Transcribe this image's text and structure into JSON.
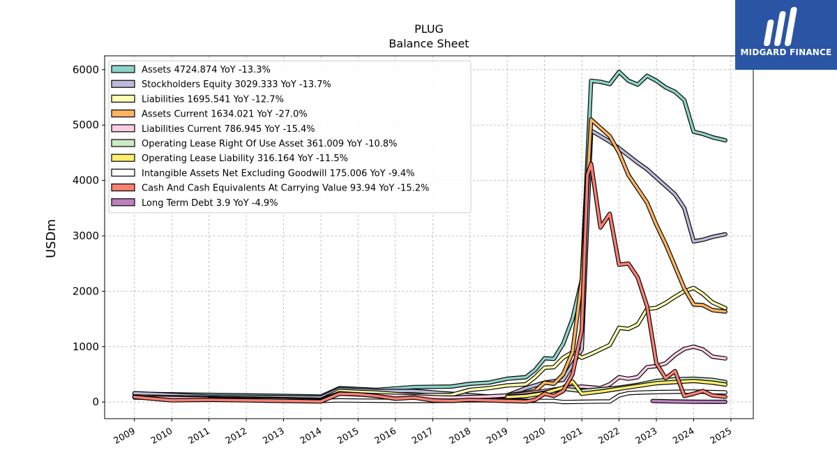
{
  "logo": {
    "text": "MIDGARD FINANCE",
    "background": "#2a55a4"
  },
  "chart_data": {
    "type": "line",
    "title": "PLUG",
    "subtitle": "Balance  Sheet",
    "xlabel": "",
    "ylabel": "USDm",
    "xlim": [
      2008.2,
      2025.6
    ],
    "ylim": [
      -300,
      6250
    ],
    "yticks": [
      0,
      1000,
      2000,
      3000,
      4000,
      5000,
      6000
    ],
    "xticks": [
      "2009",
      "2010",
      "2011",
      "2012",
      "2013",
      "2014",
      "2015",
      "2016",
      "2017",
      "2018",
      "2019",
      "2020",
      "2021",
      "2022",
      "2023",
      "2024",
      "2025"
    ],
    "grid": true,
    "legend_position": "top-left",
    "series": [
      {
        "name": "Assets",
        "legend": "Assets  4724.874 YoY -13.3%",
        "color": "#8dd3c7",
        "x": [
          2009.0,
          2014.0,
          2014.5,
          2015.5,
          2016.5,
          2017.5,
          2018.0,
          2018.5,
          2019.0,
          2019.5,
          2019.75,
          2020.0,
          2020.25,
          2020.5,
          2020.75,
          2021.0,
          2021.25,
          2021.5,
          2021.75,
          2022.0,
          2022.25,
          2022.5,
          2022.75,
          2023.0,
          2023.25,
          2023.5,
          2023.75,
          2024.0,
          2024.25,
          2024.5,
          2024.85
        ],
        "y": [
          150,
          100,
          250,
          220,
          270,
          280,
          330,
          350,
          420,
          450,
          580,
          790,
          780,
          1050,
          1500,
          2200,
          5800,
          5780,
          5740,
          5960,
          5800,
          5730,
          5890,
          5800,
          5680,
          5600,
          5450,
          4880,
          4840,
          4780,
          4724.874
        ]
      },
      {
        "name": "Stockholders Equity",
        "legend": "Stockholders Equity  3029.333 YoY -13.7%",
        "color": "#bebada",
        "x": [
          2009.0,
          2011.0,
          2014.0,
          2014.5,
          2015.5,
          2016.5,
          2017.5,
          2018.5,
          2019.0,
          2019.5,
          2020.0,
          2020.5,
          2021.0,
          2021.25,
          2021.5,
          2021.75,
          2022.0,
          2022.25,
          2022.5,
          2022.75,
          2023.0,
          2023.25,
          2023.5,
          2023.75,
          2024.0,
          2024.25,
          2024.5,
          2024.85
        ],
        "y": [
          160,
          100,
          80,
          230,
          200,
          200,
          150,
          100,
          120,
          250,
          350,
          400,
          950,
          4900,
          4800,
          4700,
          4580,
          4450,
          4320,
          4200,
          4050,
          3900,
          3750,
          3500,
          2900,
          2930,
          2980,
          3029.333
        ]
      },
      {
        "name": "Liabilities",
        "legend": "Liabilities  1695.541 YoY -12.7%",
        "color": "#ffffb3",
        "x": [
          2009.0,
          2014.0,
          2014.5,
          2015.5,
          2016.5,
          2017.5,
          2018.0,
          2018.5,
          2019.0,
          2019.5,
          2019.75,
          2020.0,
          2020.25,
          2020.5,
          2020.75,
          2021.0,
          2021.25,
          2021.5,
          2021.75,
          2022.0,
          2022.25,
          2022.5,
          2022.75,
          2023.0,
          2023.25,
          2023.5,
          2023.75,
          2024.0,
          2024.25,
          2024.5,
          2024.85
        ],
        "y": [
          100,
          40,
          200,
          170,
          120,
          130,
          220,
          250,
          300,
          320,
          450,
          620,
          630,
          800,
          900,
          800,
          870,
          950,
          1030,
          1340,
          1320,
          1400,
          1680,
          1700,
          1790,
          1900,
          2000,
          2060,
          1950,
          1800,
          1695.541
        ]
      },
      {
        "name": "Assets Current",
        "legend": "Assets Current  1634.021 YoY -27.0%",
        "color": "#fdb462",
        "x": [
          2009.0,
          2014.0,
          2014.5,
          2015.5,
          2016.5,
          2017.5,
          2018.5,
          2019.0,
          2019.5,
          2019.75,
          2020.0,
          2020.25,
          2020.5,
          2020.75,
          2021.0,
          2021.25,
          2021.5,
          2021.75,
          2022.0,
          2022.25,
          2022.5,
          2022.75,
          2023.0,
          2023.25,
          2023.5,
          2023.75,
          2024.0,
          2024.25,
          2024.5,
          2024.85
        ],
        "y": [
          100,
          40,
          160,
          120,
          80,
          40,
          60,
          120,
          170,
          200,
          350,
          330,
          500,
          900,
          2200,
          5100,
          4950,
          4800,
          4500,
          4100,
          3850,
          3600,
          3200,
          2850,
          2450,
          2050,
          1760,
          1750,
          1660,
          1634.021
        ]
      },
      {
        "name": "Liabilities Current",
        "legend": "Liabilities Current  786.945 YoY -15.4%",
        "color": "#fccde5",
        "x": [
          2009.0,
          2014.0,
          2014.5,
          2016.5,
          2017.5,
          2018.5,
          2019.0,
          2019.5,
          2020.0,
          2020.5,
          2021.0,
          2021.5,
          2021.75,
          2022.0,
          2022.25,
          2022.5,
          2022.75,
          2023.0,
          2023.25,
          2023.5,
          2023.75,
          2024.0,
          2024.25,
          2024.5,
          2024.85
        ],
        "y": [
          80,
          30,
          150,
          100,
          80,
          100,
          120,
          150,
          200,
          250,
          280,
          250,
          320,
          450,
          420,
          450,
          630,
          650,
          700,
          850,
          960,
          1000,
          950,
          820,
          786.945
        ]
      },
      {
        "name": "Operating Lease Right Of Use Asset",
        "legend": "Operating Lease Right Of Use Asset  361.009 YoY -10.8%",
        "color": "#ccebc5",
        "x": [
          2019.0,
          2019.5,
          2020.0,
          2020.5,
          2021.0,
          2021.5,
          2022.0,
          2022.5,
          2023.0,
          2023.5,
          2024.0,
          2024.5,
          2024.85
        ],
        "y": [
          100,
          120,
          170,
          240,
          200,
          230,
          260,
          310,
          380,
          410,
          420,
          400,
          361.009
        ]
      },
      {
        "name": "Operating Lease Liability",
        "legend": "Operating Lease Liability  316.164 YoY -11.5%",
        "color": "#ffed6f",
        "x": [
          2019.0,
          2019.5,
          2020.0,
          2020.5,
          2020.75,
          2021.0,
          2021.5,
          2022.0,
          2022.5,
          2023.0,
          2023.5,
          2024.0,
          2024.5,
          2024.85
        ],
        "y": [
          90,
          110,
          160,
          260,
          370,
          150,
          190,
          240,
          290,
          340,
          360,
          380,
          350,
          316.164
        ]
      },
      {
        "name": "Intangible Assets Net Excluding Goodwill",
        "legend": "Intangible Assets Net Excluding Goodwill  175.006 YoY -9.4%",
        "color": "#ffffff",
        "x": [
          2011.0,
          2013.0,
          2014.0,
          2014.5,
          2016.0,
          2017.0,
          2018.0,
          2019.0,
          2019.75,
          2020.25,
          2020.5,
          2021.0,
          2021.5,
          2021.75,
          2022.0,
          2022.25,
          2022.5,
          2023.0,
          2023.5,
          2024.0,
          2024.5,
          2024.85
        ],
        "y": [
          50,
          40,
          20,
          30,
          20,
          20,
          30,
          30,
          20,
          20,
          0,
          5,
          10,
          10,
          120,
          160,
          170,
          180,
          185,
          190,
          180,
          175.006
        ]
      },
      {
        "name": "Cash And Cash Equivalents At Carrying Value",
        "legend": "Cash And Cash Equivalents At Carrying Value  93.94 YoY -15.2%",
        "color": "#fb8072",
        "x": [
          2009.0,
          2010.0,
          2011.0,
          2012.0,
          2013.0,
          2014.0,
          2014.5,
          2015.0,
          2015.5,
          2016.0,
          2016.5,
          2017.0,
          2017.5,
          2018.0,
          2018.5,
          2019.0,
          2019.5,
          2019.75,
          2020.0,
          2020.25,
          2020.5,
          2020.75,
          2021.0,
          2021.15,
          2021.25,
          2021.5,
          2021.75,
          2022.0,
          2022.25,
          2022.5,
          2022.75,
          2023.0,
          2023.25,
          2023.5,
          2023.75,
          2024.0,
          2024.25,
          2024.5,
          2024.85
        ],
        "y": [
          90,
          30,
          40,
          30,
          20,
          10,
          150,
          140,
          110,
          60,
          80,
          30,
          20,
          40,
          30,
          20,
          10,
          40,
          150,
          110,
          200,
          500,
          1300,
          4100,
          4300,
          3150,
          3400,
          2480,
          2500,
          2250,
          1730,
          700,
          430,
          560,
          110,
          150,
          200,
          120,
          93.94
        ]
      },
      {
        "name": "Long Term Debt",
        "legend": "Long Term Debt  3.9 YoY -4.9%",
        "color": "#bc80bd",
        "x": [
          2022.9,
          2023.5,
          2024.0,
          2024.85
        ],
        "y": [
          20,
          10,
          5,
          3.9
        ]
      }
    ]
  }
}
